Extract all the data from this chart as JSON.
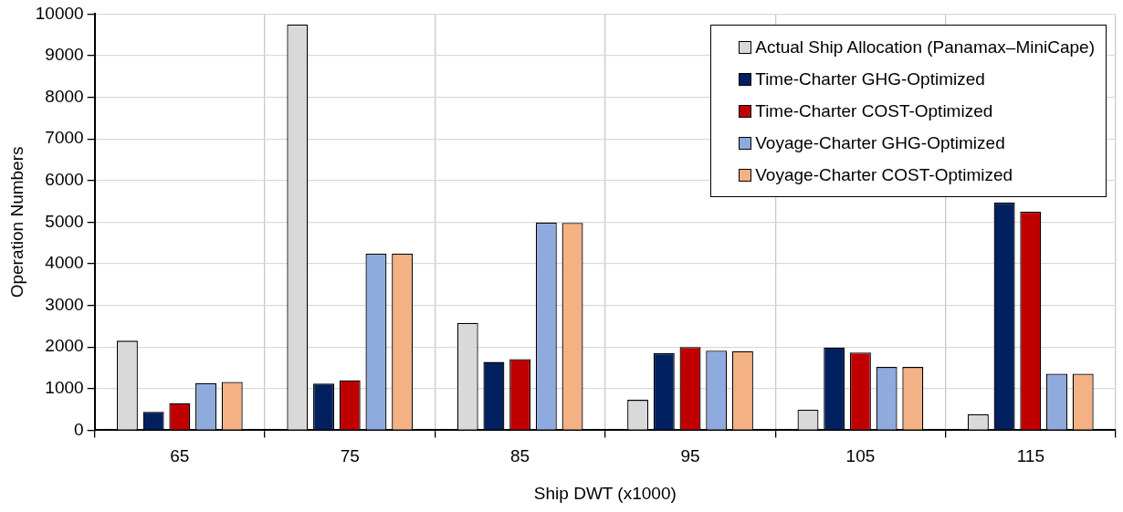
{
  "chart_data": {
    "type": "bar",
    "xlabel": "Ship DWT (x1000)",
    "ylabel": "Operation Numbers",
    "categories": [
      "65",
      "75",
      "85",
      "95",
      "105",
      "115"
    ],
    "series": [
      {
        "name": "Actual Ship Allocation (Panamax–MiniCape)",
        "color": "#d9d9d9",
        "values": [
          2150,
          9750,
          2580,
          730,
          490,
          380
        ]
      },
      {
        "name": "Time-Charter GHG-Optimized",
        "color": "#002060",
        "values": [
          440,
          1120,
          1640,
          1850,
          1990,
          5470
        ]
      },
      {
        "name": "Time-Charter COST-Optimized",
        "color": "#c00000",
        "values": [
          650,
          1200,
          1710,
          2000,
          1870,
          5250
        ]
      },
      {
        "name": "Voyage-Charter GHG-Optimized",
        "color": "#8faadc",
        "values": [
          1130,
          4240,
          4990,
          1910,
          1520,
          1360
        ]
      },
      {
        "name": "Voyage-Charter COST-Optimized",
        "color": "#f4b183",
        "values": [
          1160,
          4240,
          4980,
          1900,
          1520,
          1360
        ]
      }
    ],
    "ylim": [
      0,
      10000
    ],
    "yticks": [
      0,
      1000,
      2000,
      3000,
      4000,
      5000,
      6000,
      7000,
      8000,
      9000,
      10000
    ],
    "grid": true,
    "legend": "top right"
  }
}
